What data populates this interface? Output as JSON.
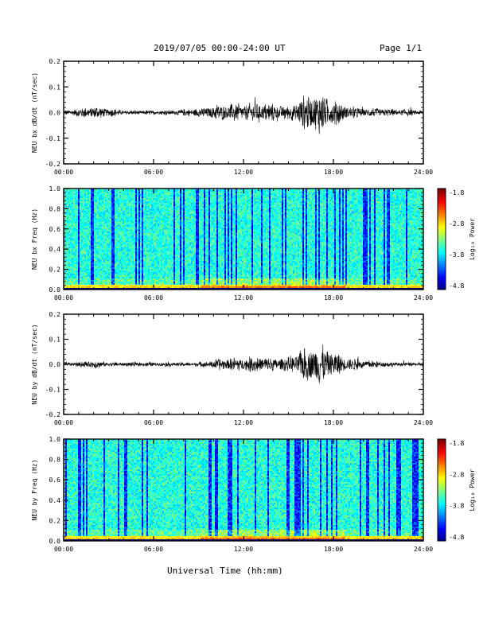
{
  "header": {
    "date_range": "2019/07/05  00:00-24:00 UT",
    "page": "Page 1/1"
  },
  "footer": {
    "xlabel": "Universal Time (hh:mm)"
  },
  "time_ticks": [
    "00:00",
    "06:00",
    "12:00",
    "18:00",
    "24:00"
  ],
  "colorbar": {
    "label": "Log₁₀ Power",
    "ticks": [
      "-1.8",
      "-2.8",
      "-3.8",
      "-4.8"
    ]
  },
  "chart_data": [
    {
      "type": "line",
      "ylabel": "NEU bx dB/dt (nT/sec)",
      "xlabel": "Universal Time (hh:mm)",
      "xlim": [
        "00:00",
        "24:00"
      ],
      "ylim": [
        -0.2,
        0.2
      ],
      "yticks": [
        "0.2",
        "0.1",
        "0.0",
        "-0.1",
        "-0.2"
      ],
      "x": [
        "00:00",
        "01:00",
        "02:00",
        "03:00",
        "04:00",
        "05:00",
        "06:00",
        "07:00",
        "08:00",
        "09:00",
        "10:00",
        "11:00",
        "12:00",
        "13:00",
        "14:00",
        "15:00",
        "16:00",
        "17:00",
        "18:00",
        "19:00",
        "20:00",
        "21:00",
        "22:00",
        "23:00",
        "24:00"
      ],
      "series": [
        {
          "values": [
            0.01,
            0.02,
            0.03,
            0.02,
            0.01,
            0.01,
            0.01,
            0.01,
            0.015,
            0.02,
            0.03,
            0.04,
            0.04,
            0.045,
            0.04,
            0.03,
            0.07,
            0.09,
            0.06,
            0.03,
            0.02,
            0.02,
            0.015,
            0.015,
            0.01
          ]
        }
      ]
    },
    {
      "type": "heatmap",
      "ylabel": "NEU bx Freq (Hz)",
      "xlim": [
        "00:00",
        "24:00"
      ],
      "ylim": [
        0.0,
        1.0
      ],
      "yticks": [
        "1.0",
        "0.8",
        "0.6",
        "0.4",
        "0.2",
        "0.0"
      ],
      "zlabel": "Log₁₀ Power",
      "zlim": [
        -4.8,
        -1.8
      ]
    },
    {
      "type": "line",
      "ylabel": "NEU by dB/dt (nT/sec)",
      "xlabel": "Universal Time (hh:mm)",
      "xlim": [
        "00:00",
        "24:00"
      ],
      "ylim": [
        -0.2,
        0.2
      ],
      "yticks": [
        "0.2",
        "0.1",
        "0.0",
        "-0.1",
        "-0.2"
      ],
      "x": [
        "00:00",
        "01:00",
        "02:00",
        "03:00",
        "04:00",
        "05:00",
        "06:00",
        "07:00",
        "08:00",
        "09:00",
        "10:00",
        "11:00",
        "12:00",
        "13:00",
        "14:00",
        "15:00",
        "16:00",
        "17:00",
        "18:00",
        "19:00",
        "20:00",
        "21:00",
        "22:00",
        "23:00",
        "24:00"
      ],
      "series": [
        {
          "values": [
            0.01,
            0.01,
            0.02,
            0.01,
            0.01,
            0.01,
            0.01,
            0.01,
            0.01,
            0.01,
            0.02,
            0.03,
            0.03,
            0.04,
            0.03,
            0.03,
            0.07,
            0.09,
            0.06,
            0.03,
            0.02,
            0.015,
            0.01,
            0.01,
            0.01
          ]
        }
      ]
    },
    {
      "type": "heatmap",
      "ylabel": "NEU by Freq (Hz)",
      "xlim": [
        "00:00",
        "24:00"
      ],
      "ylim": [
        0.0,
        1.0
      ],
      "yticks": [
        "1.0",
        "0.8",
        "0.6",
        "0.4",
        "0.2",
        "0.0"
      ],
      "zlabel": "Log₁₀ Power",
      "zlim": [
        -4.8,
        -1.8
      ]
    }
  ],
  "colors": {
    "axis": "#000000",
    "trace": "#000000"
  }
}
